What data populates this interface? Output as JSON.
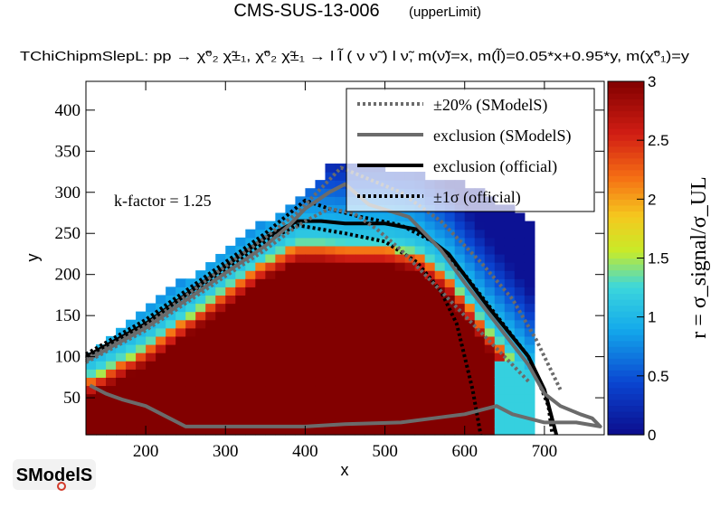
{
  "chart_data": {
    "type": "heatmap",
    "title": "CMS-SUS-13-006",
    "title_note": "(upperLimit)",
    "subtitle": "TChiChipmSlepL: pp  → χ̃⁰₂ χ̃±₁, χ̃⁰₂ χ̃±₁  → l l̃ ( ν ν̃ ) l ν̃, m(ν̃)=x, m(l̃)=0.05*x+0.95*y, m(χ̃⁰₁)=y",
    "xlabel": "x",
    "ylabel": "y",
    "xlim": [
      125,
      775
    ],
    "ylim": [
      5,
      435
    ],
    "x_ticks": [
      200,
      300,
      400,
      500,
      600,
      700
    ],
    "y_ticks": [
      50,
      100,
      150,
      200,
      250,
      300,
      350,
      400
    ],
    "colorbar": {
      "label": "r = σ_signal/σ_UL",
      "range": [
        0,
        3
      ],
      "ticks": [
        0,
        0.5,
        1,
        1.5,
        2,
        2.5,
        3
      ]
    },
    "annotation": "k-factor = 1.25",
    "legend": {
      "position": "top-right",
      "entries": [
        {
          "label": "±20% (SModelS)",
          "style": "dotted",
          "color": "#6b6b6b"
        },
        {
          "label": "exclusion (SModelS)",
          "style": "solid",
          "color": "#6b6b6b"
        },
        {
          "label": "exclusion (official)",
          "style": "solid",
          "color": "#000000"
        },
        {
          "label": "±1σ (official)",
          "style": "dotted",
          "color": "#000000"
        }
      ]
    },
    "heatmap_model": {
      "grid_step_x": 12.5,
      "grid_step_y": 10,
      "region_diagonal": "y < x - 25",
      "region_upper_edge": [
        [
          125,
          108
        ],
        [
          300,
          230
        ],
        [
          400,
          300
        ],
        [
          440,
          340
        ],
        [
          500,
          330
        ],
        [
          600,
          310
        ],
        [
          660,
          280
        ],
        [
          680,
          260
        ]
      ],
      "region_xmax": 680
    },
    "series": [
      {
        "name": "exclusion (official)",
        "points": [
          [
            125,
            100
          ],
          [
            200,
            140
          ],
          [
            300,
            210
          ],
          [
            350,
            245
          ],
          [
            390,
            265
          ],
          [
            420,
            265
          ],
          [
            450,
            262
          ],
          [
            500,
            262
          ],
          [
            540,
            255
          ],
          [
            580,
            225
          ],
          [
            630,
            160
          ],
          [
            680,
            100
          ],
          [
            700,
            60
          ],
          [
            715,
            5
          ]
        ]
      },
      {
        "name": "+1σ (official)",
        "points": [
          [
            125,
            103
          ],
          [
            200,
            145
          ],
          [
            300,
            215
          ],
          [
            350,
            250
          ],
          [
            400,
            290
          ],
          [
            430,
            280
          ],
          [
            470,
            270
          ],
          [
            520,
            260
          ],
          [
            560,
            240
          ],
          [
            600,
            200
          ],
          [
            640,
            150
          ],
          [
            680,
            100
          ],
          [
            705,
            40
          ],
          [
            710,
            5
          ]
        ]
      },
      {
        "name": "-1σ (official)",
        "points": [
          [
            125,
            98
          ],
          [
            200,
            137
          ],
          [
            300,
            205
          ],
          [
            350,
            240
          ],
          [
            390,
            260
          ],
          [
            420,
            255
          ],
          [
            450,
            250
          ],
          [
            500,
            240
          ],
          [
            540,
            215
          ],
          [
            570,
            180
          ],
          [
            590,
            140
          ],
          [
            600,
            100
          ],
          [
            610,
            60
          ],
          [
            620,
            5
          ]
        ]
      },
      {
        "name": "exclusion (SModelS)",
        "points": [
          [
            125,
            95
          ],
          [
            200,
            135
          ],
          [
            300,
            202
          ],
          [
            350,
            235
          ],
          [
            380,
            260
          ],
          [
            400,
            280
          ],
          [
            430,
            300
          ],
          [
            450,
            310
          ],
          [
            480,
            285
          ],
          [
            530,
            270
          ],
          [
            570,
            230
          ],
          [
            600,
            190
          ],
          [
            640,
            140
          ],
          [
            680,
            90
          ],
          [
            700,
            55
          ],
          [
            720,
            40
          ],
          [
            745,
            30
          ],
          [
            760,
            25
          ],
          [
            770,
            15
          ],
          [
            740,
            20
          ],
          [
            700,
            20
          ],
          [
            660,
            30
          ],
          [
            640,
            40
          ],
          [
            600,
            30
          ],
          [
            560,
            25
          ],
          [
            520,
            20
          ],
          [
            450,
            18
          ],
          [
            400,
            15
          ],
          [
            350,
            15
          ],
          [
            300,
            15
          ],
          [
            250,
            15
          ],
          [
            230,
            25
          ],
          [
            200,
            40
          ],
          [
            170,
            48
          ],
          [
            150,
            55
          ],
          [
            130,
            65
          ]
        ]
      },
      {
        "name": "+20% (SModelS)",
        "points": [
          [
            125,
            97
          ],
          [
            200,
            138
          ],
          [
            300,
            210
          ],
          [
            350,
            245
          ],
          [
            390,
            275
          ],
          [
            420,
            305
          ],
          [
            445,
            330
          ],
          [
            470,
            320
          ],
          [
            520,
            300
          ],
          [
            570,
            265
          ],
          [
            620,
            215
          ],
          [
            660,
            170
          ],
          [
            690,
            120
          ],
          [
            710,
            80
          ],
          [
            720,
            60
          ]
        ]
      },
      {
        "name": "-20% (SModelS)",
        "points": [
          [
            125,
            93
          ],
          [
            200,
            132
          ],
          [
            300,
            198
          ],
          [
            350,
            230
          ],
          [
            380,
            252
          ],
          [
            400,
            265
          ],
          [
            430,
            280
          ],
          [
            460,
            275
          ],
          [
            490,
            255
          ],
          [
            520,
            230
          ],
          [
            560,
            190
          ],
          [
            600,
            150
          ],
          [
            640,
            110
          ],
          [
            670,
            80
          ],
          [
            680,
            70
          ]
        ]
      }
    ]
  },
  "logo": {
    "text": "SModelS"
  }
}
